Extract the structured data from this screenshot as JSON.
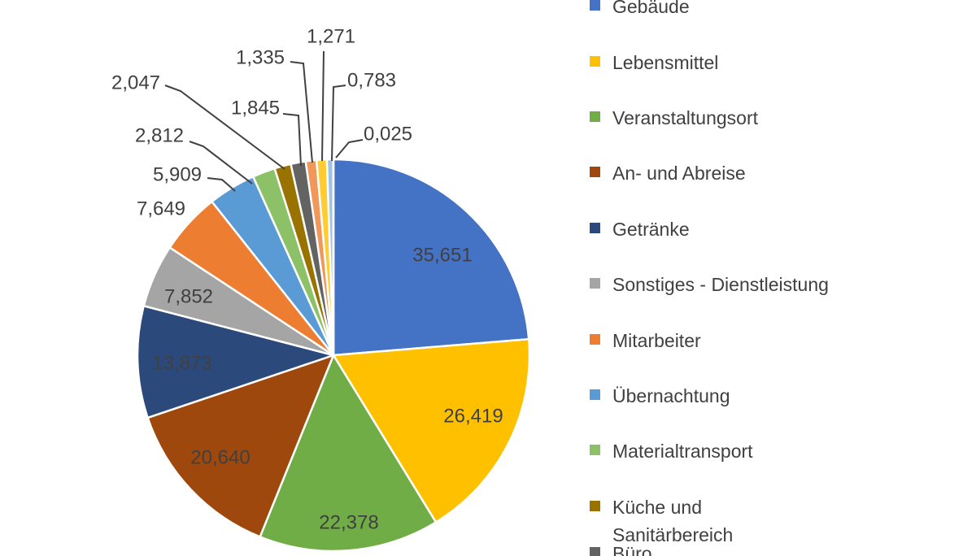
{
  "chart_data": {
    "type": "pie",
    "title": "",
    "legend_position": "right",
    "label_color": "#404040",
    "leader_line_color": "#404040",
    "slices": [
      {
        "legend_label": "Gebäude",
        "value": 35.651,
        "value_label": "35,651",
        "color": "#4472C4"
      },
      {
        "legend_label": "Lebensmittel",
        "value": 26.419,
        "value_label": "26,419",
        "color": "#FFC000"
      },
      {
        "legend_label": "Veranstaltungsort",
        "value": 22.378,
        "value_label": "22,378",
        "color": "#70AD47"
      },
      {
        "legend_label": "An- und Abreise",
        "value": 20.64,
        "value_label": "20,640",
        "color": "#9E480E"
      },
      {
        "legend_label": "Getränke",
        "value": 13.873,
        "value_label": "13,873",
        "color": "#2B4A7B"
      },
      {
        "legend_label": "Sonstiges - Dienstleistung",
        "value": 7.852,
        "value_label": "7,852",
        "color": "#A5A5A5"
      },
      {
        "legend_label": "Mitarbeiter",
        "value": 7.649,
        "value_label": "7,649",
        "color": "#ED7D31"
      },
      {
        "legend_label": "Übernachtung",
        "value": 5.909,
        "value_label": "5,909",
        "color": "#5B9BD5"
      },
      {
        "legend_label": "Materialtransport",
        "value": 2.812,
        "value_label": "2,812",
        "color": "#8CC168"
      },
      {
        "legend_label": "Küche und Sanitärbereich",
        "value": 2.047,
        "value_label": "2,047",
        "color": "#997300"
      },
      {
        "legend_label": "Büro",
        "value": 1.845,
        "value_label": "1,845",
        "color": "#636363"
      },
      {
        "legend_label": null,
        "value": 1.335,
        "value_label": "1,335",
        "color": "#F1975A"
      },
      {
        "legend_label": null,
        "value": 1.271,
        "value_label": "1,271",
        "color": "#FFCD33"
      },
      {
        "legend_label": null,
        "value": 0.783,
        "value_label": "0,783",
        "color": "#9DC3E6"
      },
      {
        "legend_label": null,
        "value": 0.025,
        "value_label": "0,025",
        "color": "#D6DCE5"
      }
    ],
    "legend_items": [
      {
        "label": "Gebäude"
      },
      {
        "label": "Lebensmittel"
      },
      {
        "label": "Veranstaltungsort"
      },
      {
        "label": "An- und Abreise"
      },
      {
        "label": "Getränke"
      },
      {
        "label": "Sonstiges - Dienstleistung"
      },
      {
        "label": "Mitarbeiter"
      },
      {
        "label": "Übernachtung"
      },
      {
        "label": "Materialtransport"
      },
      {
        "label": "Küche und Sanitärbereich",
        "lines": [
          "Küche und",
          "Sanitärbereich"
        ]
      },
      {
        "label": "Büro"
      }
    ]
  }
}
